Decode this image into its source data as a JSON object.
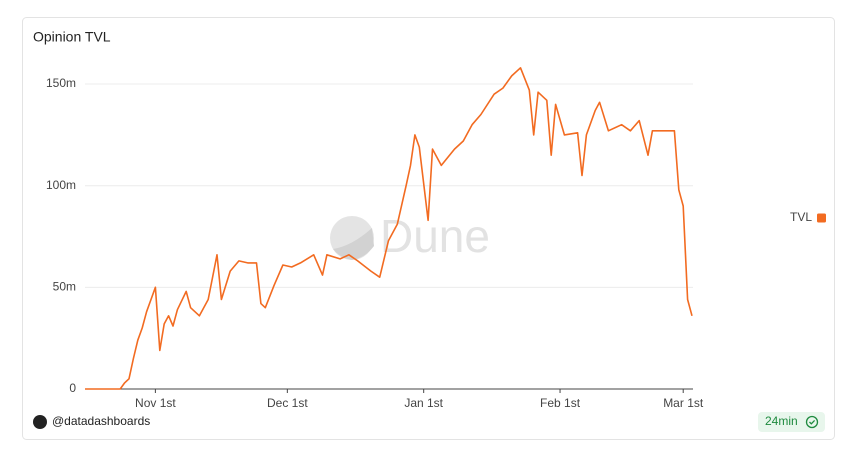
{
  "chart_data": {
    "type": "line",
    "title": "Opinion TVL",
    "x": [
      "10-16",
      "10-24",
      "10-25",
      "10-26",
      "10-27",
      "10-28",
      "10-29",
      "10-30",
      "10-31",
      "11-01",
      "11-02",
      "11-03",
      "11-04",
      "11-05",
      "11-06",
      "11-08",
      "11-09",
      "11-11",
      "11-13",
      "11-15",
      "11-16",
      "11-18",
      "11-20",
      "11-22",
      "11-24",
      "11-25",
      "11-26",
      "11-28",
      "11-30",
      "12-02",
      "12-04",
      "12-07",
      "12-09",
      "12-10",
      "12-13",
      "12-15",
      "12-17",
      "12-20",
      "12-22",
      "12-24",
      "12-26",
      "12-28",
      "12-29",
      "12-30",
      "12-31",
      "01-02",
      "01-03",
      "01-05",
      "01-08",
      "01-10",
      "01-12",
      "01-14",
      "01-17",
      "01-19",
      "01-21",
      "01-23",
      "01-25",
      "01-26",
      "01-27",
      "01-29",
      "01-30",
      "01-31",
      "02-02",
      "02-05",
      "02-06",
      "02-07",
      "02-09",
      "02-10",
      "02-12",
      "02-15",
      "02-17",
      "02-19",
      "02-21",
      "02-22",
      "02-25",
      "02-27",
      "02-28",
      "03-01",
      "03-02",
      "03-03"
    ],
    "series": [
      {
        "name": "TVL",
        "color": "#f26b21",
        "values": [
          0,
          0,
          3,
          5,
          15,
          24,
          30,
          38,
          44,
          50,
          19,
          32,
          36,
          31,
          39,
          48,
          40,
          36,
          44,
          66,
          44,
          58,
          63,
          62,
          62,
          42,
          40,
          51,
          61,
          60,
          62,
          66,
          56,
          66,
          64,
          66,
          63,
          58,
          55,
          73,
          81,
          100,
          110,
          125,
          119,
          83,
          118,
          110,
          118,
          122,
          130,
          135,
          145,
          148,
          154,
          158,
          147,
          125,
          146,
          142,
          115,
          140,
          125,
          126,
          105,
          125,
          137,
          141,
          127,
          130,
          127,
          132,
          115,
          127,
          127,
          127,
          98,
          90,
          44,
          36
        ]
      }
    ],
    "xlim": [
      "10-16",
      "03-03"
    ],
    "xticks": [
      {
        "value": "11-01",
        "label": "Nov 1st"
      },
      {
        "value": "12-01",
        "label": "Dec 1st"
      },
      {
        "value": "01-01",
        "label": "Jan 1st"
      },
      {
        "value": "02-01",
        "label": "Feb 1st"
      },
      {
        "value": "03-01",
        "label": "Mar 1st"
      }
    ],
    "ylim": [
      0,
      160
    ],
    "yticks": [
      0,
      {
        "value": 50,
        "label": "50m"
      },
      {
        "value": 100,
        "label": "100m"
      },
      {
        "value": 150,
        "label": "150m"
      }
    ],
    "grid": true,
    "legend": "right",
    "watermark": "Dune"
  },
  "footer": {
    "author": "@datadashboards",
    "updated": "24min"
  }
}
